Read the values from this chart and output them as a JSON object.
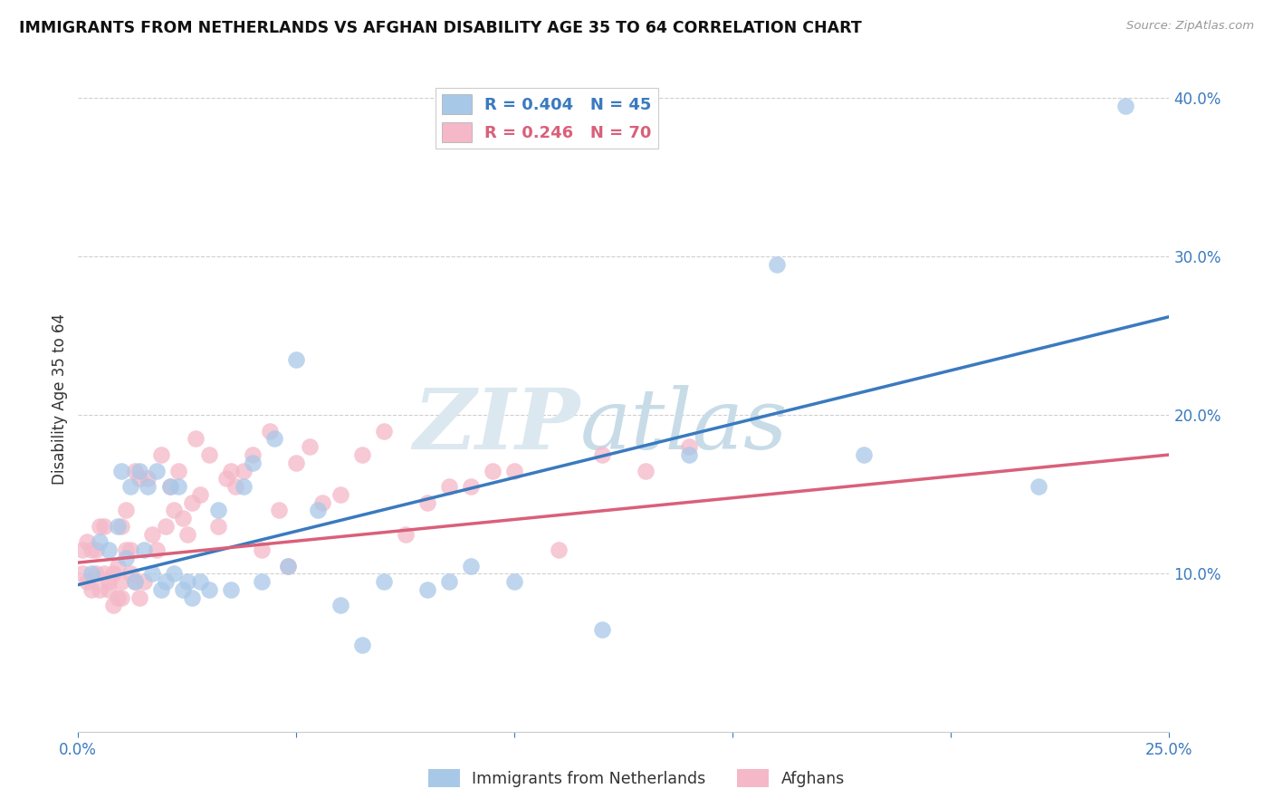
{
  "title": "IMMIGRANTS FROM NETHERLANDS VS AFGHAN DISABILITY AGE 35 TO 64 CORRELATION CHART",
  "source": "Source: ZipAtlas.com",
  "ylabel": "Disability Age 35 to 64",
  "xlim": [
    0.0,
    0.25
  ],
  "ylim": [
    0.0,
    0.42
  ],
  "xticks": [
    0.0,
    0.05,
    0.1,
    0.15,
    0.2,
    0.25
  ],
  "yticks": [
    0.0,
    0.1,
    0.2,
    0.3,
    0.4
  ],
  "xticklabels": [
    "0.0%",
    "",
    "",
    "",
    "",
    "25.0%"
  ],
  "yticklabels_right": [
    "",
    "10.0%",
    "20.0%",
    "30.0%",
    "40.0%"
  ],
  "legend_r1": "R = 0.404",
  "legend_n1": "N = 45",
  "legend_r2": "R = 0.246",
  "legend_n2": "N = 70",
  "color_blue": "#a8c8e8",
  "color_pink": "#f4b8c8",
  "line_blue": "#3a7abf",
  "line_pink": "#d9607a",
  "watermark_zip": "ZIP",
  "watermark_atlas": "atlas",
  "background_color": "#ffffff",
  "blue_scatter_x": [
    0.003,
    0.005,
    0.007,
    0.009,
    0.01,
    0.011,
    0.012,
    0.013,
    0.014,
    0.015,
    0.016,
    0.017,
    0.018,
    0.019,
    0.02,
    0.021,
    0.022,
    0.023,
    0.024,
    0.025,
    0.026,
    0.028,
    0.03,
    0.032,
    0.035,
    0.038,
    0.04,
    0.042,
    0.045,
    0.048,
    0.05,
    0.055,
    0.06,
    0.065,
    0.07,
    0.08,
    0.085,
    0.09,
    0.1,
    0.12,
    0.14,
    0.16,
    0.18,
    0.22,
    0.24
  ],
  "blue_scatter_y": [
    0.1,
    0.12,
    0.115,
    0.13,
    0.165,
    0.11,
    0.155,
    0.095,
    0.165,
    0.115,
    0.155,
    0.1,
    0.165,
    0.09,
    0.095,
    0.155,
    0.1,
    0.155,
    0.09,
    0.095,
    0.085,
    0.095,
    0.09,
    0.14,
    0.09,
    0.155,
    0.17,
    0.095,
    0.185,
    0.105,
    0.235,
    0.14,
    0.08,
    0.055,
    0.095,
    0.09,
    0.095,
    0.105,
    0.095,
    0.065,
    0.175,
    0.295,
    0.175,
    0.155,
    0.395
  ],
  "pink_scatter_x": [
    0.001,
    0.001,
    0.002,
    0.002,
    0.003,
    0.003,
    0.004,
    0.004,
    0.005,
    0.005,
    0.006,
    0.006,
    0.007,
    0.007,
    0.008,
    0.008,
    0.009,
    0.009,
    0.01,
    0.01,
    0.01,
    0.011,
    0.011,
    0.012,
    0.012,
    0.013,
    0.013,
    0.014,
    0.014,
    0.015,
    0.016,
    0.017,
    0.018,
    0.019,
    0.02,
    0.021,
    0.022,
    0.023,
    0.024,
    0.025,
    0.026,
    0.027,
    0.028,
    0.03,
    0.032,
    0.034,
    0.035,
    0.036,
    0.038,
    0.04,
    0.042,
    0.044,
    0.046,
    0.048,
    0.05,
    0.053,
    0.056,
    0.06,
    0.065,
    0.07,
    0.075,
    0.08,
    0.085,
    0.09,
    0.095,
    0.1,
    0.11,
    0.12,
    0.13,
    0.14
  ],
  "pink_scatter_y": [
    0.1,
    0.115,
    0.12,
    0.095,
    0.115,
    0.09,
    0.115,
    0.1,
    0.09,
    0.13,
    0.1,
    0.13,
    0.09,
    0.095,
    0.08,
    0.1,
    0.085,
    0.105,
    0.095,
    0.085,
    0.13,
    0.115,
    0.14,
    0.1,
    0.115,
    0.095,
    0.165,
    0.085,
    0.16,
    0.095,
    0.16,
    0.125,
    0.115,
    0.175,
    0.13,
    0.155,
    0.14,
    0.165,
    0.135,
    0.125,
    0.145,
    0.185,
    0.15,
    0.175,
    0.13,
    0.16,
    0.165,
    0.155,
    0.165,
    0.175,
    0.115,
    0.19,
    0.14,
    0.105,
    0.17,
    0.18,
    0.145,
    0.15,
    0.175,
    0.19,
    0.125,
    0.145,
    0.155,
    0.155,
    0.165,
    0.165,
    0.115,
    0.175,
    0.165,
    0.18
  ]
}
